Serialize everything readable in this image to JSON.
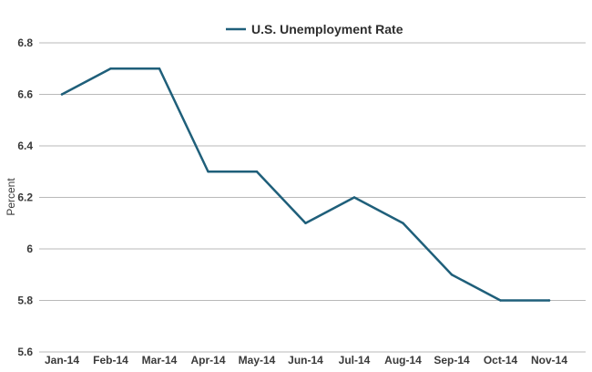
{
  "chart_data": {
    "type": "line",
    "categories": [
      "Jan-14",
      "Feb-14",
      "Mar-14",
      "Apr-14",
      "May-14",
      "Jun-14",
      "Jul-14",
      "Aug-14",
      "Sep-14",
      "Oct-14",
      "Nov-14"
    ],
    "series": [
      {
        "name": "U.S. Unemployment Rate",
        "values": [
          6.6,
          6.7,
          6.7,
          6.3,
          6.3,
          6.1,
          6.2,
          6.1,
          5.9,
          5.8,
          5.8
        ],
        "color": "#1f5f7a"
      }
    ],
    "ylabel": "Percent",
    "xlabel": "",
    "ylim": [
      5.6,
      6.8
    ],
    "yticks": [
      "5.6",
      "5.8",
      "6",
      "6.2",
      "6.4",
      "6.6",
      "6.8"
    ],
    "grid": true,
    "legend_position": "top"
  }
}
